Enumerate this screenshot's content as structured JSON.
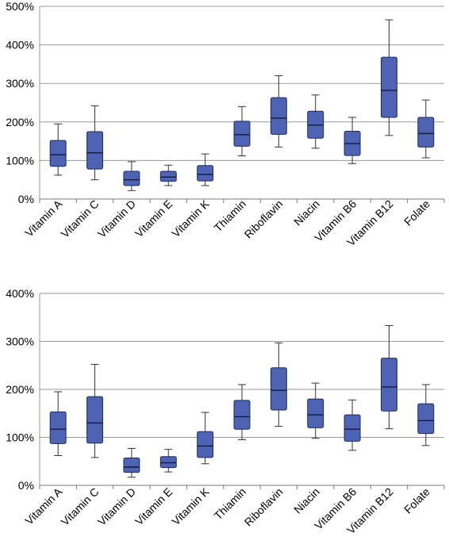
{
  "chart_data": [
    {
      "type": "box",
      "ylim": [
        0,
        500
      ],
      "yticks": [
        0,
        100,
        200,
        300,
        400,
        500
      ],
      "ytick_labels": [
        "0%",
        "100%",
        "200%",
        "300%",
        "400%",
        "500%"
      ],
      "grid": true,
      "box_color": "#4f63b5",
      "box_edge_color": "#1f2a55",
      "grid_color": "#9a9a9a",
      "categories": [
        "Vitamin A",
        "Vitamin C",
        "Vitamin D",
        "Vitamin E",
        "Vitamin K",
        "Thiamin",
        "Riboflavin",
        "Niacin",
        "Vitamin B6",
        "Vitamin B12",
        "Folate"
      ],
      "boxes": [
        {
          "min": 62,
          "q1": 85,
          "median": 115,
          "q3": 152,
          "max": 195
        },
        {
          "min": 50,
          "q1": 78,
          "median": 120,
          "q3": 175,
          "max": 242
        },
        {
          "min": 22,
          "q1": 35,
          "median": 50,
          "q3": 72,
          "max": 97
        },
        {
          "min": 35,
          "q1": 46,
          "median": 57,
          "q3": 72,
          "max": 88
        },
        {
          "min": 35,
          "q1": 47,
          "median": 64,
          "q3": 87,
          "max": 117
        },
        {
          "min": 112,
          "q1": 137,
          "median": 167,
          "q3": 202,
          "max": 240
        },
        {
          "min": 135,
          "q1": 168,
          "median": 210,
          "q3": 263,
          "max": 320
        },
        {
          "min": 132,
          "q1": 158,
          "median": 192,
          "q3": 228,
          "max": 270
        },
        {
          "min": 92,
          "q1": 113,
          "median": 144,
          "q3": 176,
          "max": 212
        },
        {
          "min": 165,
          "q1": 212,
          "median": 282,
          "q3": 368,
          "max": 465
        },
        {
          "min": 107,
          "q1": 135,
          "median": 170,
          "q3": 212,
          "max": 257
        }
      ]
    },
    {
      "type": "box",
      "ylim": [
        0,
        400
      ],
      "yticks": [
        0,
        100,
        200,
        300,
        400
      ],
      "ytick_labels": [
        "0%",
        "100%",
        "200%",
        "300%",
        "400%"
      ],
      "grid": true,
      "box_color": "#4f63b5",
      "box_edge_color": "#1f2a55",
      "grid_color": "#9a9a9a",
      "categories": [
        "Vitamin A",
        "Vitamin C",
        "Vitamin D",
        "Vitamin E",
        "Vitamin K",
        "Thiamin",
        "Riboflavin",
        "Niacin",
        "Vitamin B6",
        "Vitamin B12",
        "Folate"
      ],
      "boxes": [
        {
          "min": 62,
          "q1": 87,
          "median": 117,
          "q3": 153,
          "max": 195
        },
        {
          "min": 58,
          "q1": 88,
          "median": 130,
          "q3": 185,
          "max": 252
        },
        {
          "min": 17,
          "q1": 27,
          "median": 38,
          "q3": 57,
          "max": 77
        },
        {
          "min": 28,
          "q1": 37,
          "median": 47,
          "q3": 60,
          "max": 75
        },
        {
          "min": 45,
          "q1": 58,
          "median": 82,
          "q3": 112,
          "max": 152
        },
        {
          "min": 95,
          "q1": 117,
          "median": 143,
          "q3": 177,
          "max": 210
        },
        {
          "min": 123,
          "q1": 157,
          "median": 198,
          "q3": 245,
          "max": 297
        },
        {
          "min": 98,
          "q1": 120,
          "median": 147,
          "q3": 180,
          "max": 213
        },
        {
          "min": 73,
          "q1": 92,
          "median": 117,
          "q3": 147,
          "max": 178
        },
        {
          "min": 118,
          "q1": 155,
          "median": 205,
          "q3": 265,
          "max": 333
        },
        {
          "min": 83,
          "q1": 108,
          "median": 135,
          "q3": 170,
          "max": 210
        }
      ]
    }
  ]
}
